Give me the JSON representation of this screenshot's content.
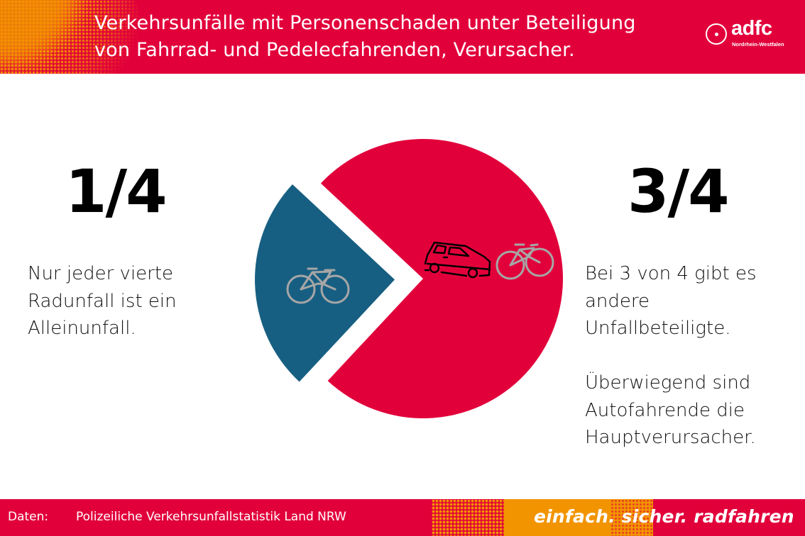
{
  "header": {
    "title_lines": [
      "Verkehrsunfälle mit Personenschaden unter Beteiligung",
      "von Fahrrad- und Pedelecfahrenden, Verursacher."
    ],
    "logo": {
      "name": "adfc",
      "subtitle": "Nordrhein-Westfalen"
    },
    "brand_color": "#e2003b",
    "accent_color": "#f29400"
  },
  "left_panel": {
    "fraction": "1/4",
    "description_lines": [
      "Nur jeder vierte",
      "Radunfall ist ein",
      "Alleinunfall."
    ]
  },
  "right_panel": {
    "fraction": "3/4",
    "description_lines": [
      "Bei 3 von 4 gibt es",
      "andere",
      "Unfallbeteiligte."
    ],
    "description2_lines": [
      "Überwiegend sind",
      "Autofahrende die",
      "Hauptverursacher."
    ]
  },
  "chart_data": {
    "type": "pie",
    "title": "Verkehrsunfälle mit Personenschaden unter Beteiligung von Fahrrad- und Pedelecfahrenden, Verursacher.",
    "legend": "none",
    "slices": [
      {
        "label": "Alleinunfall",
        "value": 0.25,
        "display": "1/4",
        "color": "#175f82",
        "icon": "bicycle-icon",
        "exploded": true
      },
      {
        "label": "Andere Unfallbeteiligte",
        "value": 0.75,
        "display": "3/4",
        "color": "#e2003b",
        "icon": "car-and-bicycle-icon",
        "exploded": false
      }
    ],
    "start_angle_deg": 137,
    "direction": "counterclockwise-from-east"
  },
  "footer": {
    "label": "Daten:",
    "source": "Polizeiliche Verkehrsunfallstatistik Land NRW",
    "slogan": "einfach. sicher. radfahren"
  }
}
